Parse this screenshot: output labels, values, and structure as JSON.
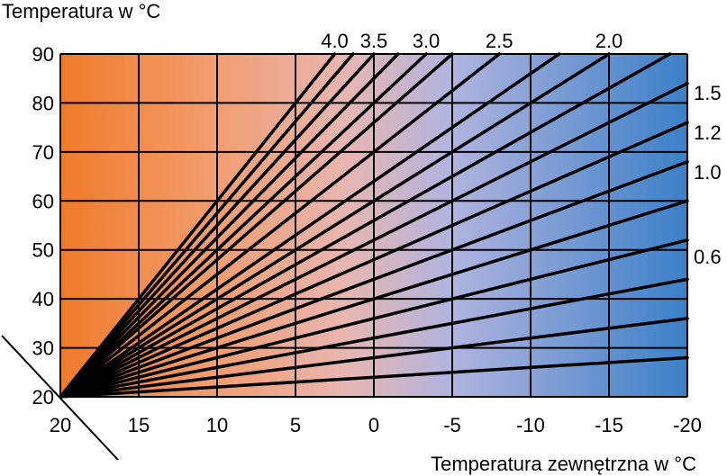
{
  "chart_data": {
    "type": "line",
    "title": "",
    "ylabel": "Temperatura w °C",
    "xlabel": "Temperatura zewnętrzna w °C",
    "xlim": [
      20,
      -20
    ],
    "ylim": [
      20,
      90
    ],
    "x_ticks": [
      "20",
      "15",
      "10",
      "5",
      "0",
      "-5",
      "-10",
      "-15",
      "-20"
    ],
    "y_ticks": [
      "20",
      "30",
      "40",
      "50",
      "60",
      "70",
      "80",
      "90"
    ],
    "grid": true,
    "background": "horizontal gradient orange to blue",
    "colors": {
      "warm": "#f07a2a",
      "mid": "#e8b4b0",
      "light": "#b4b2dc",
      "cool": "#3a7fc8",
      "line": "#000000"
    },
    "curve_labels": [
      "4.0",
      "3.5",
      "3.0",
      "2.5",
      "2.0",
      "1.5",
      "1.2",
      "1.0",
      "0.6"
    ],
    "series": [
      {
        "slope": 0.2
      },
      {
        "slope": 0.4
      },
      {
        "slope": 0.6
      },
      {
        "slope": 0.8
      },
      {
        "slope": 1.0
      },
      {
        "slope": 1.2
      },
      {
        "slope": 1.4
      },
      {
        "slope": 1.6
      },
      {
        "slope": 1.8
      },
      {
        "slope": 2.0
      },
      {
        "slope": 2.2
      },
      {
        "slope": 2.5
      },
      {
        "slope": 2.8
      },
      {
        "slope": 3.0
      },
      {
        "slope": 3.25
      },
      {
        "slope": 3.5
      },
      {
        "slope": 3.75
      },
      {
        "slope": 4.0
      }
    ]
  }
}
